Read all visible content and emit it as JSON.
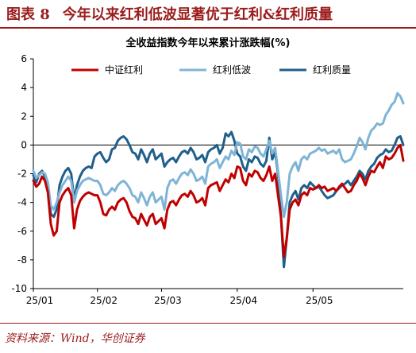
{
  "header": {
    "figure_label": "图表 8",
    "figure_title": "今年以来红利低波显著优于红利&红利质量"
  },
  "source": {
    "text": "资料来源：Wind，华创证券"
  },
  "chart_data": {
    "type": "line",
    "title": "全收益指数今年以来累计涨跌幅(%)",
    "xlabel": "",
    "ylabel": "",
    "ylim": [
      -10,
      6
    ],
    "yticks": [
      -10,
      -8,
      -6,
      -4,
      -2,
      0,
      2,
      4,
      6
    ],
    "xticks": [
      "25/01",
      "25/02",
      "25/03",
      "25/04",
      "25/05"
    ],
    "grid": false,
    "legend_position": "top",
    "series": [
      {
        "name": "中证红利",
        "color": "#c00000",
        "values": [
          -2.5,
          -2.9,
          -2.7,
          -2.2,
          -2.5,
          -3.3,
          -5.5,
          -6.3,
          -6.0,
          -4.0,
          -3.5,
          -3.2,
          -3.0,
          -3.5,
          -5.8,
          -4.5,
          -3.9,
          -3.6,
          -3.4,
          -3.3,
          -3.4,
          -3.5,
          -3.5,
          -4.0,
          -4.8,
          -4.9,
          -4.5,
          -4.3,
          -4.5,
          -4.0,
          -3.8,
          -3.7,
          -4.0,
          -4.6,
          -5.0,
          -5.1,
          -5.5,
          -4.8,
          -5.2,
          -5.6,
          -5.0,
          -4.8,
          -5.5,
          -5.3,
          -5.1,
          -5.8,
          -4.5,
          -4.0,
          -3.9,
          -4.2,
          -3.8,
          -3.5,
          -3.4,
          -3.6,
          -3.2,
          -3.5,
          -4.0,
          -3.9,
          -3.7,
          -4.2,
          -3.0,
          -2.8,
          -2.7,
          -2.6,
          -3.2,
          -2.8,
          -2.4,
          -2.6,
          -2.0,
          -2.3,
          -1.5,
          -1.6,
          -2.5,
          -2.8,
          -2.0,
          -2.2,
          -1.8,
          -1.9,
          -2.3,
          -2.5,
          -2.1,
          -1.5,
          -2.5,
          -2.0,
          -3.5,
          -5.0,
          -7.8,
          -6.5,
          -4.5,
          -4.0,
          -3.8,
          -4.2,
          -3.5,
          -3.3,
          -3.5,
          -3.0,
          -3.1,
          -3.0,
          -2.8,
          -3.0,
          -2.9,
          -3.2,
          -3.1,
          -3.0,
          -3.2,
          -2.9,
          -2.7,
          -3.0,
          -3.3,
          -3.2,
          -2.8,
          -2.5,
          -2.0,
          -2.3,
          -2.8,
          -2.2,
          -1.8,
          -1.9,
          -1.5,
          -1.2,
          -1.6,
          -0.8,
          -1.0,
          -0.9,
          -0.6,
          -0.2,
          0.0,
          -1.1
        ]
      },
      {
        "name": "红利低波",
        "color": "#7fb4d6",
        "values": [
          -1.8,
          -2.3,
          -2.1,
          -1.9,
          -2.0,
          -2.6,
          -4.2,
          -4.5,
          -4.0,
          -3.3,
          -2.8,
          -2.5,
          -2.2,
          -2.5,
          -4.0,
          -3.2,
          -2.8,
          -2.5,
          -2.4,
          -2.3,
          -2.4,
          -2.5,
          -2.5,
          -2.8,
          -3.4,
          -3.5,
          -3.3,
          -3.0,
          -3.2,
          -2.8,
          -2.6,
          -2.5,
          -2.7,
          -3.0,
          -3.5,
          -3.6,
          -4.0,
          -3.3,
          -3.7,
          -4.2,
          -3.6,
          -3.3,
          -4.0,
          -3.8,
          -3.6,
          -4.5,
          -3.0,
          -2.5,
          -2.4,
          -2.7,
          -2.3,
          -2.0,
          -1.9,
          -2.1,
          -1.7,
          -2.0,
          -2.5,
          -2.4,
          -2.2,
          -2.7,
          -1.5,
          -1.3,
          -1.2,
          -1.0,
          -1.6,
          -1.2,
          -0.8,
          -1.0,
          -0.4,
          -0.7,
          0.2,
          0.1,
          -0.8,
          -1.0,
          -0.3,
          -0.5,
          -0.1,
          -0.2,
          -0.6,
          -0.8,
          -0.3,
          0.3,
          -0.6,
          -0.2,
          -1.8,
          -3.5,
          -5.0,
          -4.0,
          -2.0,
          -1.5,
          -1.2,
          -1.8,
          -1.0,
          -0.8,
          -1.0,
          -0.6,
          -0.5,
          -0.4,
          -0.2,
          -0.4,
          -0.3,
          -0.6,
          -0.5,
          -0.4,
          -0.6,
          -0.3,
          -1.0,
          -1.2,
          -1.1,
          -1.0,
          -0.6,
          -0.1,
          0.5,
          0.2,
          -0.3,
          0.5,
          1.0,
          1.2,
          1.5,
          1.4,
          1.5,
          2.1,
          2.4,
          2.8,
          3.0,
          3.6,
          3.4,
          2.9
        ]
      },
      {
        "name": "红利质量",
        "color": "#1f5f8b",
        "values": [
          -2.1,
          -2.6,
          -2.0,
          -1.8,
          -2.2,
          -3.0,
          -4.8,
          -5.0,
          -4.5,
          -2.8,
          -2.2,
          -1.8,
          -1.6,
          -2.0,
          -3.8,
          -2.8,
          -2.2,
          -1.8,
          -1.6,
          -1.5,
          -1.6,
          -0.8,
          -0.6,
          -0.5,
          -0.9,
          -1.2,
          -1.0,
          -0.3,
          -0.2,
          0.3,
          0.5,
          0.6,
          0.4,
          0.0,
          -0.5,
          -0.6,
          -1.0,
          -0.3,
          -0.7,
          -1.2,
          -0.6,
          -0.3,
          -1.0,
          -0.8,
          -0.6,
          -1.5,
          -1.2,
          -1.0,
          -0.9,
          -1.2,
          -0.8,
          -0.5,
          -0.4,
          -0.6,
          -0.2,
          -0.5,
          -1.0,
          -0.9,
          -0.7,
          -1.2,
          -0.5,
          -0.3,
          -0.2,
          0.0,
          -0.6,
          -0.2,
          0.8,
          0.6,
          0.9,
          0.3,
          -0.6,
          -0.8,
          -1.5,
          -1.8,
          -1.0,
          -1.2,
          -0.8,
          -0.9,
          -1.3,
          -1.5,
          -1.1,
          0.5,
          -1.0,
          -0.5,
          -2.0,
          -5.0,
          -8.5,
          -6.5,
          -4.0,
          -3.5,
          -3.2,
          -3.8,
          -3.0,
          -2.8,
          -3.0,
          -2.6,
          -2.8,
          -3.0,
          -2.9,
          -3.2,
          -3.5,
          -3.7,
          -3.6,
          -3.5,
          -3.2,
          -3.0,
          -2.8,
          -2.7,
          -2.5,
          -2.8,
          -2.5,
          -2.2,
          -1.8,
          -2.0,
          -2.4,
          -1.8,
          -1.5,
          -1.3,
          -0.9,
          -0.7,
          -0.6,
          -0.3,
          -0.5,
          -0.4,
          0.0,
          0.5,
          0.6,
          0.0
        ]
      }
    ]
  }
}
